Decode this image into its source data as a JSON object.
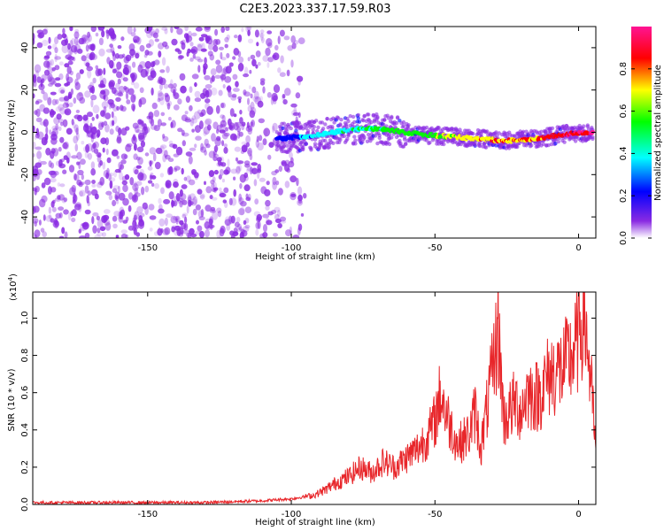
{
  "figure": {
    "title": "C2E3.2023.337.17.59.R03"
  },
  "colors": {
    "snr_line": "#e8262a",
    "spectrogram_noise": "#8a2be2",
    "frame": "#000000"
  },
  "chart_data": [
    {
      "type": "heatmap",
      "name": "spectrogram",
      "xlabel": "Height of straight line (km)",
      "ylabel": "Frequency (Hz)",
      "xlim": [
        -190,
        6
      ],
      "ylim": [
        -50,
        50
      ],
      "xticks": [
        -150,
        -100,
        -50,
        0
      ],
      "yticks": [
        -40,
        -20,
        0,
        20,
        40
      ],
      "xtick_labels": [
        "-150",
        "-100",
        "-50",
        "0"
      ],
      "ytick_labels": [
        "-40",
        "-20",
        "0",
        "20",
        "40"
      ],
      "colorbar": {
        "label": "Normalized spectral amplitude",
        "range": [
          0,
          1
        ],
        "ticks": [
          0.0,
          0.2,
          0.4,
          0.6,
          0.8
        ],
        "tick_labels": [
          "0.0",
          "0.2",
          "0.4",
          "0.6",
          "0.8"
        ],
        "colormap": [
          "#ffffff",
          "#8a2be2",
          "#0000ff",
          "#00ffff",
          "#00ff00",
          "#ffff00",
          "#ff0000",
          "#ff1493"
        ]
      },
      "signal_trace": {
        "x": [
          -105,
          -95,
          -85,
          -75,
          -65,
          -55,
          -45,
          -35,
          -25,
          -15,
          -5,
          5
        ],
        "y": [
          -3,
          -2,
          0,
          2,
          1,
          -1,
          -2,
          -3,
          -4,
          -3,
          -1,
          0
        ],
        "amplitude": [
          0.25,
          0.4,
          0.5,
          0.55,
          0.6,
          0.6,
          0.7,
          0.8,
          0.85,
          0.85,
          0.95,
          1.0
        ]
      },
      "noise_region": {
        "x_range": [
          -190,
          -95
        ],
        "y_range": [
          -50,
          50
        ],
        "amplitude": 0.1
      }
    },
    {
      "type": "line",
      "name": "snr",
      "xlabel": "Height of straight line (km)",
      "ylabel": "SNR (10 * v/v)",
      "scale_label": "(x10",
      "scale_exponent": "4",
      "scale_suffix": ")",
      "xlim": [
        -190,
        6
      ],
      "ylim": [
        0,
        1.14
      ],
      "xticks": [
        -150,
        -100,
        -50,
        0
      ],
      "yticks": [
        0.0,
        0.2,
        0.4,
        0.6,
        0.8,
        1.0
      ],
      "xtick_labels": [
        "-150",
        "-100",
        "-50",
        "0"
      ],
      "ytick_labels": [
        "0.0",
        "0.2",
        "0.4",
        "0.6",
        "0.8",
        "1.0"
      ],
      "series": [
        {
          "x": [
            -190,
            -160,
            -130,
            -110,
            -100,
            -92,
            -88,
            -84,
            -80,
            -76,
            -72,
            -68,
            -64,
            -60,
            -56,
            -52,
            -50,
            -48,
            -46,
            -42,
            -38,
            -36,
            -34,
            -30,
            -28,
            -26,
            -22,
            -20,
            -18,
            -14,
            -10,
            -6,
            -3,
            -1,
            0,
            1,
            2,
            4,
            6
          ],
          "y": [
            0.01,
            0.01,
            0.01,
            0.02,
            0.03,
            0.05,
            0.08,
            0.12,
            0.15,
            0.2,
            0.17,
            0.23,
            0.2,
            0.25,
            0.3,
            0.38,
            0.45,
            0.6,
            0.48,
            0.32,
            0.38,
            0.5,
            0.3,
            0.7,
            0.95,
            0.45,
            0.55,
            0.5,
            0.6,
            0.58,
            0.7,
            0.72,
            0.78,
            0.84,
            0.9,
            1.0,
            1.04,
            0.7,
            0.3
          ]
        }
      ]
    }
  ]
}
